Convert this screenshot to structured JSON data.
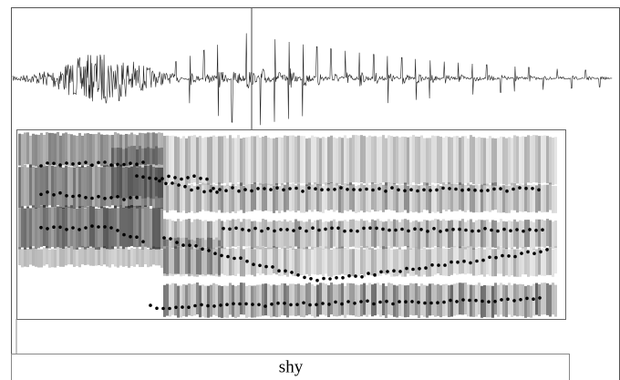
{
  "tier": {
    "interval_text": "shy"
  }
}
